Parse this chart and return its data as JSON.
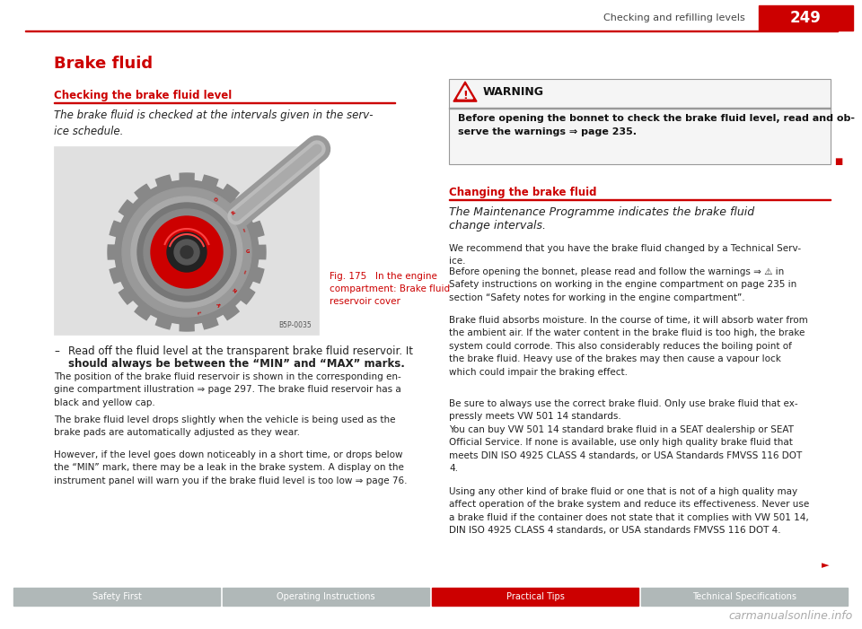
{
  "page_width": 9.6,
  "page_height": 7.01,
  "bg_color": "#ffffff",
  "header_text": "Checking and refilling levels",
  "page_number": "249",
  "header_line_color": "#cc0000",
  "page_num_bg": "#cc0000",
  "page_num_color": "#ffffff",
  "title_left": "Brake fluid",
  "title_color": "#cc0000",
  "section1_title": "Checking the brake fluid level",
  "section1_underline_color": "#cc0000",
  "section1_italic": "The brake fluid is checked at the intervals given in the serv-\nice schedule.",
  "fig_caption_line1": "Fig. 175   In the engine",
  "fig_caption_line2": "compartment: Brake fluid",
  "fig_caption_line3": "reservoir cover",
  "fig_caption_color": "#cc0000",
  "bullet_dash": "–",
  "bullet_text_line1": "Read off the fluid level at the transparent brake fluid reservoir. It",
  "bullet_text_line2": "should always be between the “MIN” and “MAX” marks.",
  "para1": "The position of the brake fluid reservoir is shown in the corresponding en-\ngine compartment illustration ⇒ page 297. The brake fluid reservoir has a\nblack and yellow cap.",
  "para2": "The brake fluid level drops slightly when the vehicle is being used as the\nbrake pads are automatically adjusted as they wear.",
  "para3": "However, if the level goes down noticeably in a short time, or drops below\nthe “MIN” mark, there may be a leak in the brake system. A display on the\ninstrument panel will warn you if the brake fluid level is too low ⇒ page 76.",
  "warning_title": "WARNING",
  "warning_text_line1": "Before opening the bonnet to check the brake fluid level, read and ob-",
  "warning_text_line2": "serve the warnings ⇒ page 235.",
  "section2_title": "Changing the brake fluid",
  "section2_underline_color": "#cc0000",
  "section2_italic_line1": "The Maintenance Programme indicates the brake fluid",
  "section2_italic_line2": "change intervals.",
  "right_para1": "We recommend that you have the brake fluid changed by a Technical Serv-\nice.",
  "right_para2": "Before opening the bonnet, please read and follow the warnings ⇒ ⚠ in\nSafety instructions on working in the engine compartment on page 235 in\nsection “Safety notes for working in the engine compartment”.",
  "right_para3": "Brake fluid absorbs moisture. In the course of time, it will absorb water from\nthe ambient air. If the water content in the brake fluid is too high, the brake\nsystem could corrode. This also considerably reduces the boiling point of\nthe brake fluid. Heavy use of the brakes may then cause a vapour lock\nwhich could impair the braking effect.",
  "right_para4": "Be sure to always use the correct brake fluid. Only use brake fluid that ex-\npressly meets VW 501 14 standards.",
  "right_para5": "You can buy VW 501 14 standard brake fluid in a SEAT dealership or SEAT\nOfficial Service. If none is available, use only high quality brake fluid that\nmeets DIN ISO 4925 CLASS 4 standards, or USA Standards FMVSS 116 DOT\n4.",
  "right_para6": "Using any other kind of brake fluid or one that is not of a high quality may\naffect operation of the brake system and reduce its effectiveness. Never use\na brake fluid if the container does not state that it complies with VW 501 14,\nDIN ISO 4925 CLASS 4 standards, or USA standards FMVSS 116 DOT 4.",
  "footer_tabs": [
    "Safety First",
    "Operating Instructions",
    "Practical Tips",
    "Technical Specifications"
  ],
  "footer_active_tab": "Practical Tips",
  "footer_active_color": "#cc0000",
  "footer_inactive_color": "#b0b8b8",
  "footer_text_color": "#ffffff",
  "watermark": "carmanualsonline.info",
  "red_arrow": "►",
  "small_red_square": "■",
  "bsp_code": "B5P-0035"
}
